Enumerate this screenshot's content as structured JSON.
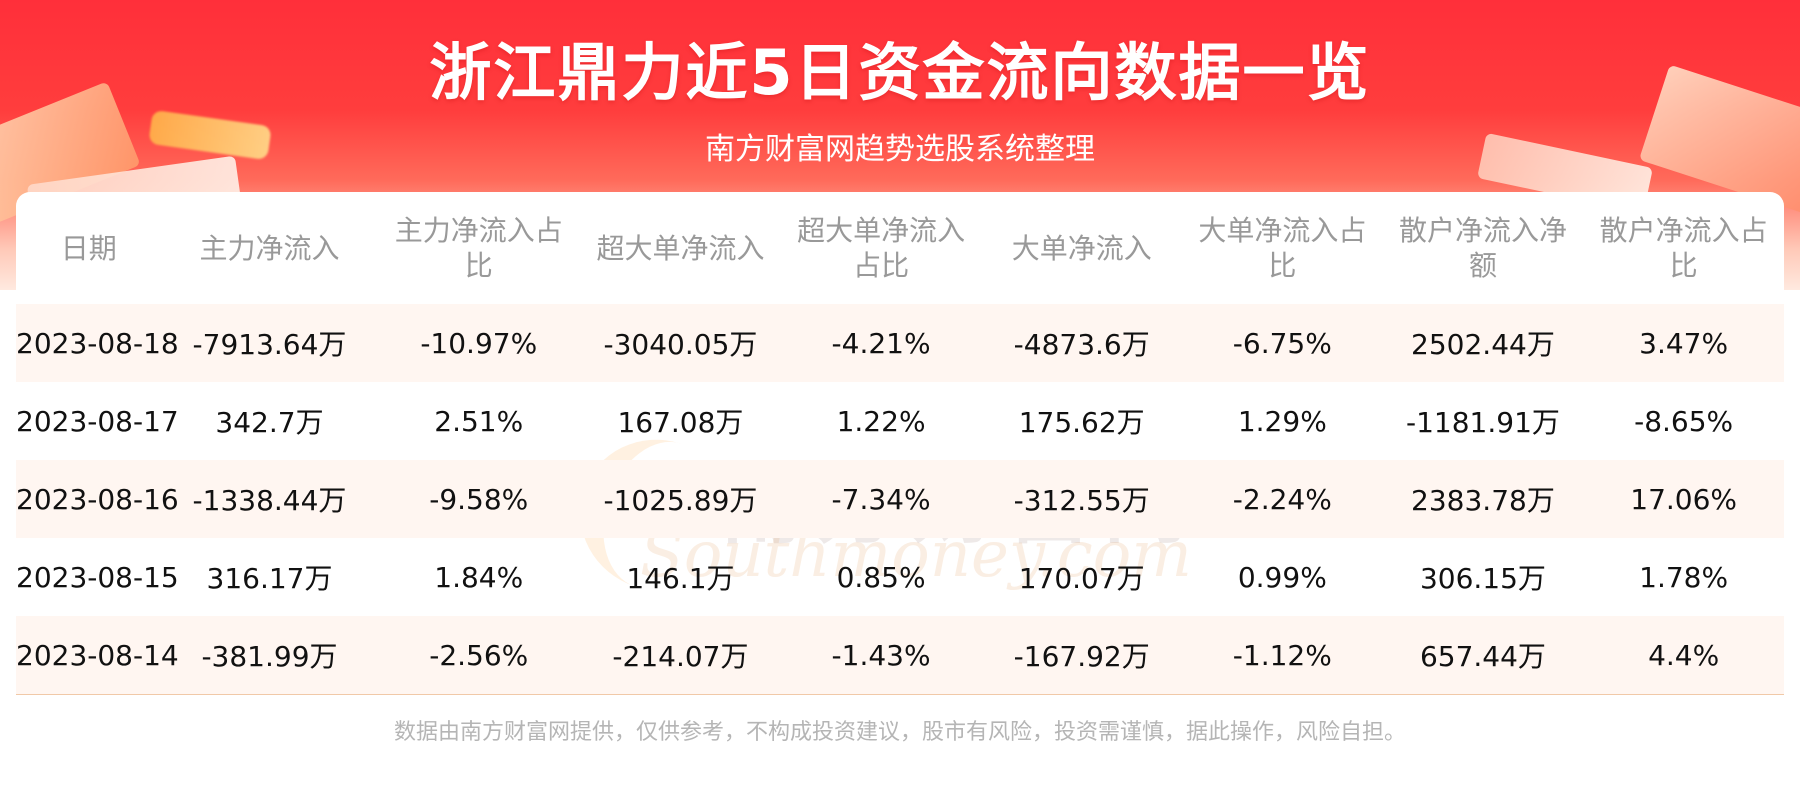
{
  "header": {
    "title": "浙江鼎力近5日资金流向数据一览",
    "subtitle": "南方财富网趋势选股系统整理"
  },
  "watermark": {
    "cn": "南方财富网",
    "en": "Southmoney.com"
  },
  "table": {
    "columns": [
      "日期",
      "主力净流入",
      "主力净流入占比",
      "超大单净流入",
      "超大单净流入占比",
      "大单净流入",
      "大单净流入占比",
      "散户净流入净额",
      "散户净流入占比"
    ],
    "rows": [
      [
        "2023-08-18",
        "-7913.64万",
        "-10.97%",
        "-3040.05万",
        "-4.21%",
        "-4873.6万",
        "-6.75%",
        "2502.44万",
        "3.47%"
      ],
      [
        "2023-08-17",
        "342.7万",
        "2.51%",
        "167.08万",
        "1.22%",
        "175.62万",
        "1.29%",
        "-1181.91万",
        "-8.65%"
      ],
      [
        "2023-08-16",
        "-1338.44万",
        "-9.58%",
        "-1025.89万",
        "-7.34%",
        "-312.55万",
        "-2.24%",
        "2383.78万",
        "17.06%"
      ],
      [
        "2023-08-15",
        "316.17万",
        "1.84%",
        "146.1万",
        "0.85%",
        "170.07万",
        "0.99%",
        "306.15万",
        "1.78%"
      ],
      [
        "2023-08-14",
        "-381.99万",
        "-2.56%",
        "-214.07万",
        "-1.43%",
        "-167.92万",
        "-1.12%",
        "657.44万",
        "4.4%"
      ]
    ]
  },
  "footer": {
    "disclaimer": "数据由南方财富网提供，仅供参考，不构成投资建议，股市有风险，投资需谨慎，据此操作，风险自担。"
  },
  "colors": {
    "banner_red": "#ff2f3a",
    "header_text": "#999999",
    "row_stripe": "#fff6f1",
    "footer_text": "#b5b5b5"
  }
}
